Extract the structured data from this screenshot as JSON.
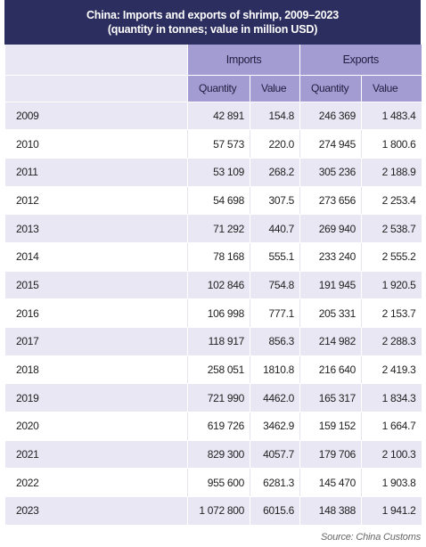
{
  "title": [
    "China: Imports and exports of shrimp, 2009–2023",
    "(quantity in tonnes; value in million USD)"
  ],
  "table": {
    "groups": [
      "Imports",
      "Exports"
    ],
    "columns": [
      "Quantity",
      "Value",
      "Quantity",
      "Value"
    ],
    "rows": [
      [
        "2009",
        "42 891",
        "154.8",
        "246 369",
        "1 483.4"
      ],
      [
        "2010",
        "57 573",
        "220.0",
        "274 945",
        "1 800.6"
      ],
      [
        "2011",
        "53 109",
        "268.2",
        "305 236",
        "2 188.9"
      ],
      [
        "2012",
        "54 698",
        "307.5",
        "273 656",
        "2 253.4"
      ],
      [
        "2013",
        "71 292",
        "440.7",
        "269 940",
        "2 538.7"
      ],
      [
        "2014",
        "78 168",
        "555.1",
        "233 240",
        "2 555.2"
      ],
      [
        "2015",
        "102 846",
        "754.8",
        "191 945",
        "1 920.5"
      ],
      [
        "2016",
        "106 998",
        "777.1",
        "205 331",
        "2 153.7"
      ],
      [
        "2017",
        "118 917",
        "856.3",
        "214 982",
        "2 288.3"
      ],
      [
        "2018",
        "258 051",
        "1810.8",
        "216 640",
        "2 419.3"
      ],
      [
        "2019",
        "721 990",
        "4462.0",
        "165 317",
        "1 834.3"
      ],
      [
        "2020",
        "619 726",
        "3462.9",
        "159 152",
        "1 664.7"
      ],
      [
        "2021",
        "829 300",
        "4057.7",
        "179 706",
        "2 100.3"
      ],
      [
        "2022",
        "955 600",
        "6281.3",
        "145 470",
        "1 903.8"
      ],
      [
        "2023",
        "1 072 800",
        "6015.6",
        "148 388",
        "1 941.2"
      ]
    ]
  },
  "source": "Source: China Customs"
}
